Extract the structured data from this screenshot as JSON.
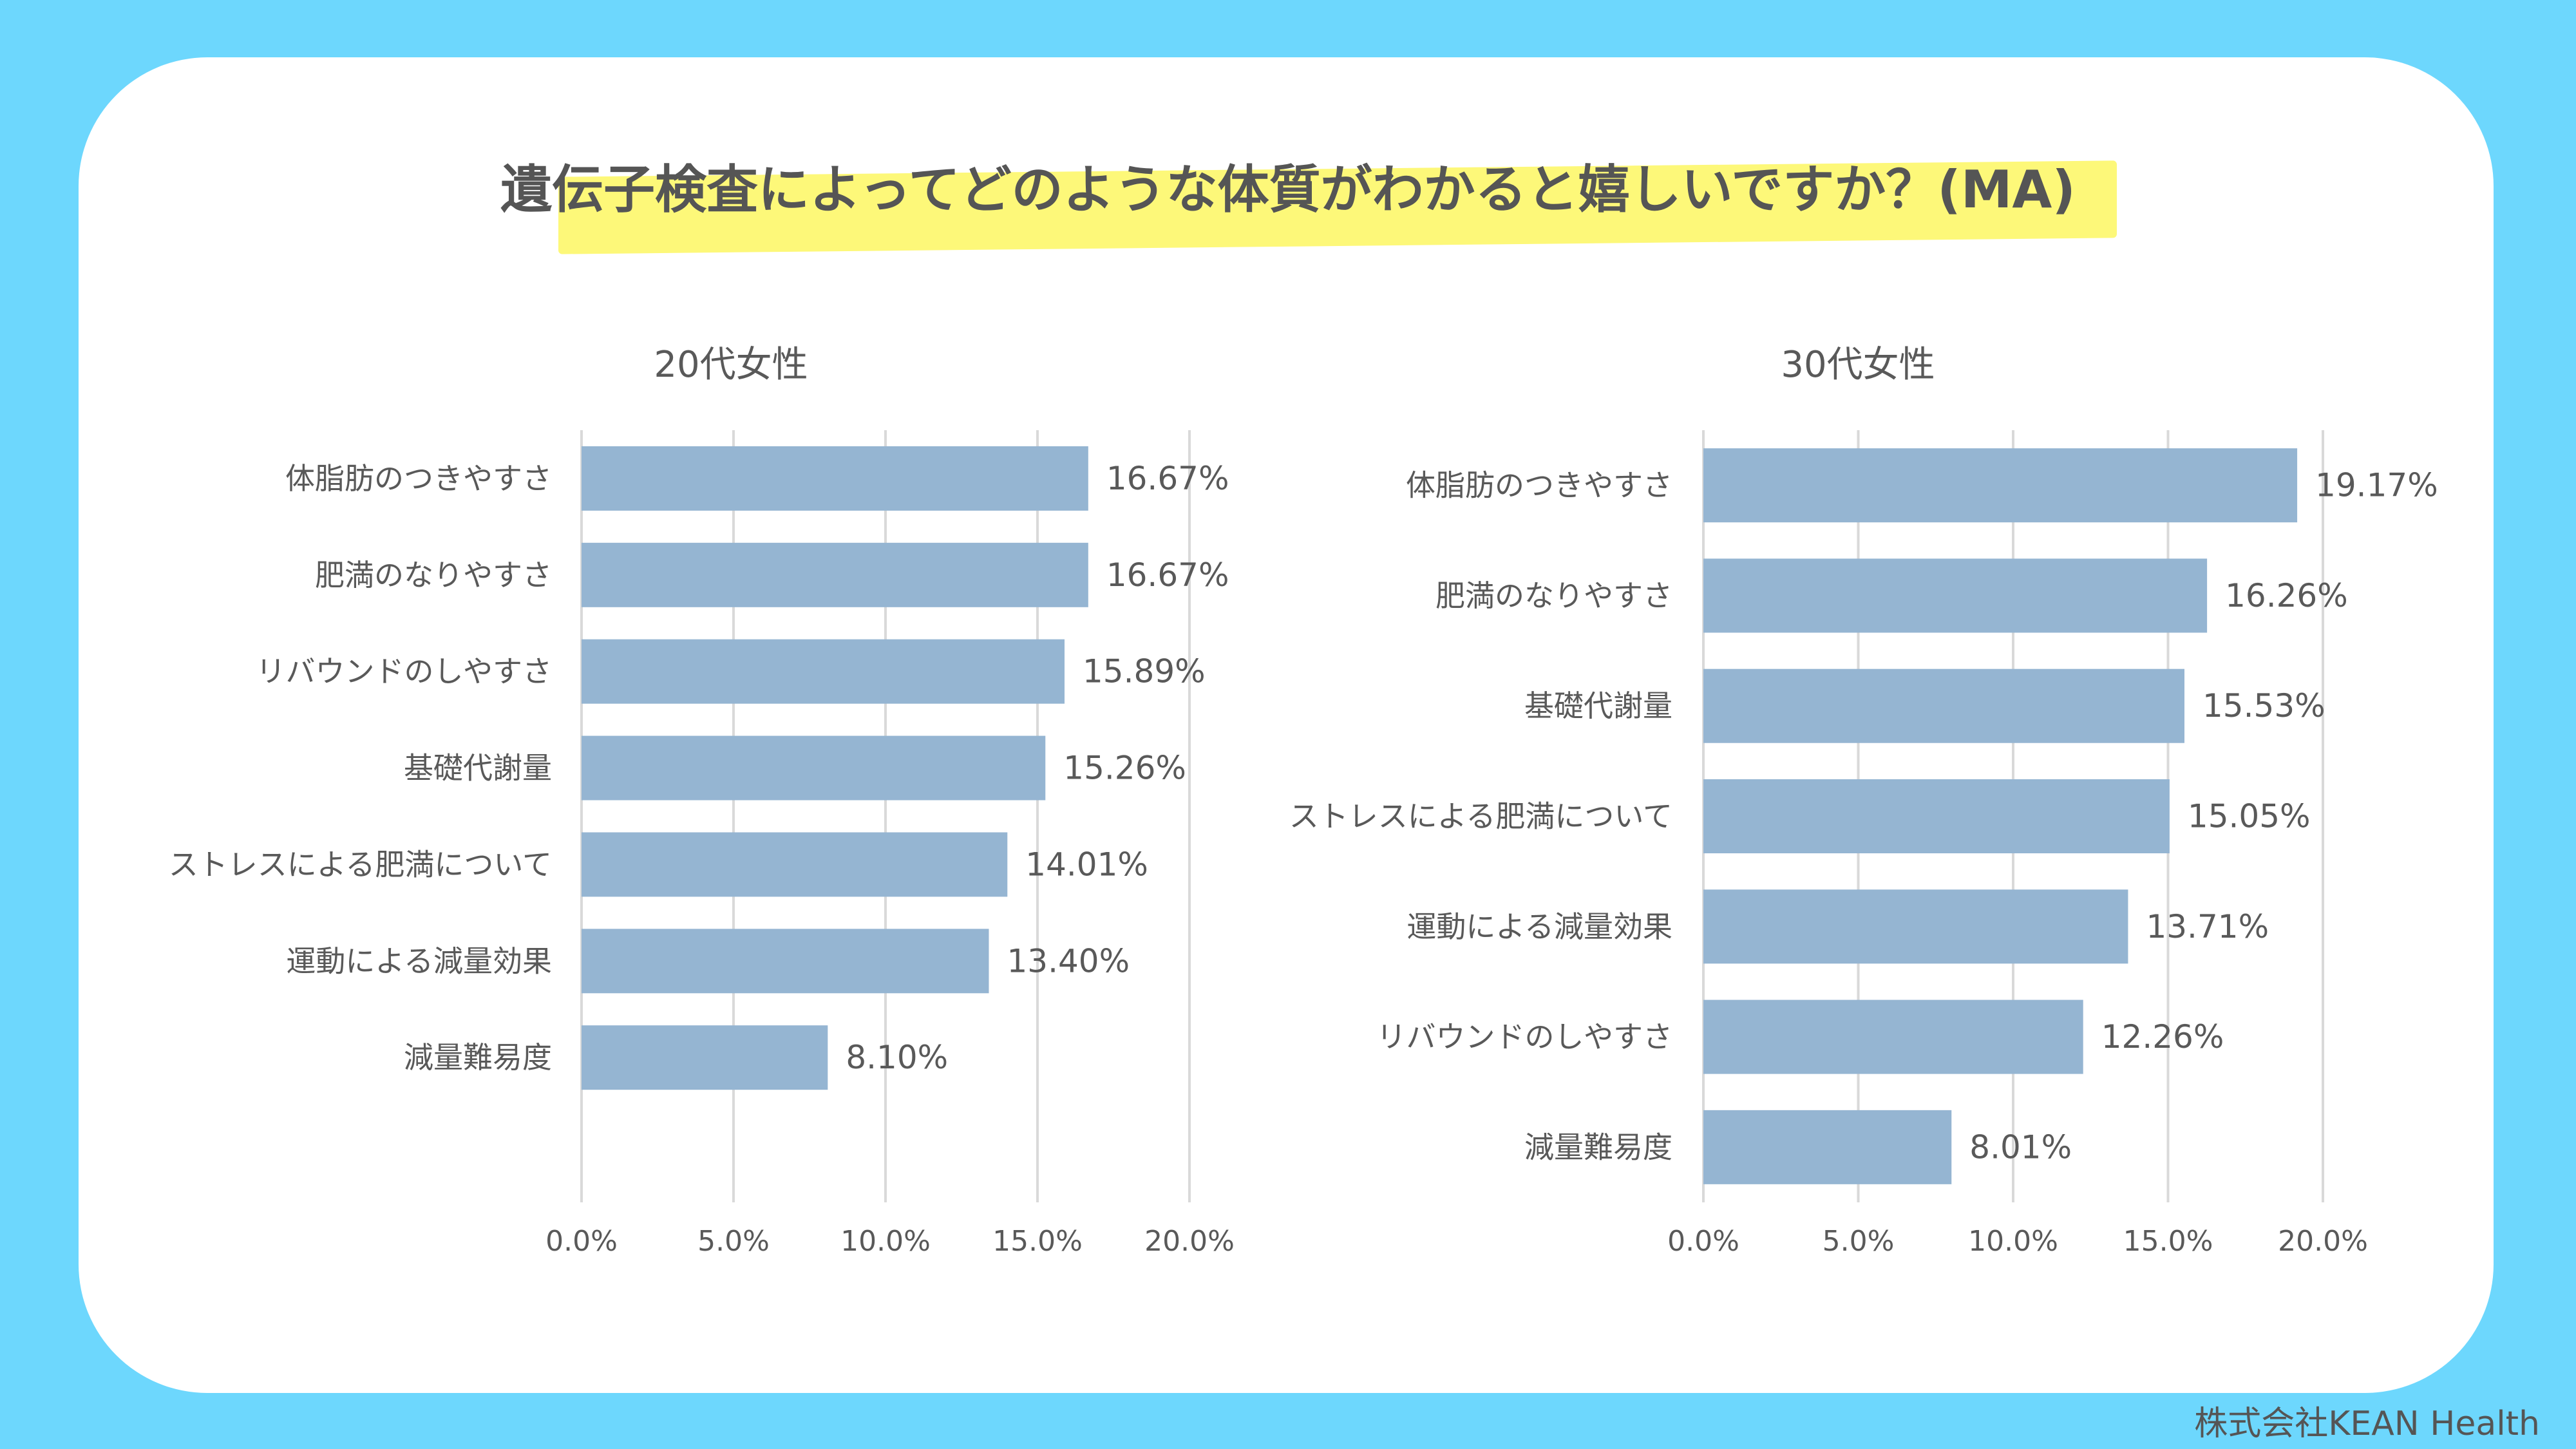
{
  "title": "遺伝子検査によってどのような体質がわかると嬉しいですか？(MA)",
  "footer": "株式会社KEAN Health",
  "colors": {
    "bar": "#95b5d2",
    "background": "#6dd7fd",
    "highlight": "#fdf879"
  },
  "chart_data": [
    {
      "type": "bar",
      "orientation": "horizontal",
      "title": "20代女性",
      "categories": [
        "体脂肪のつきやすさ",
        "肥満のなりやすさ",
        "リバウンドのしやすさ",
        "基礎代謝量",
        "ストレスによる肥満について",
        "運動による減量効果",
        "減量難易度"
      ],
      "values": [
        16.67,
        16.67,
        15.89,
        15.26,
        14.01,
        13.4,
        8.1
      ],
      "value_labels": [
        "16.67%",
        "16.67%",
        "15.89%",
        "15.26%",
        "14.01%",
        "13.40%",
        "8.10%"
      ],
      "xlim": [
        0,
        20
      ],
      "xticks": [
        "0.0%",
        "5.0%",
        "10.0%",
        "15.0%",
        "20.0%"
      ],
      "slots": 8,
      "grid": true
    },
    {
      "type": "bar",
      "orientation": "horizontal",
      "title": "30代女性",
      "categories": [
        "体脂肪のつきやすさ",
        "肥満のなりやすさ",
        "基礎代謝量",
        "ストレスによる肥満について",
        "運動による減量効果",
        "リバウンドのしやすさ",
        "減量難易度"
      ],
      "values": [
        19.17,
        16.26,
        15.53,
        15.05,
        13.71,
        12.26,
        8.01
      ],
      "value_labels": [
        "19.17%",
        "16.26%",
        "15.53%",
        "15.05%",
        "13.71%",
        "12.26%",
        "8.01%"
      ],
      "xlim": [
        0,
        20
      ],
      "xticks": [
        "0.0%",
        "5.0%",
        "10.0%",
        "15.0%",
        "20.0%"
      ],
      "slots": 7,
      "grid": true
    }
  ]
}
